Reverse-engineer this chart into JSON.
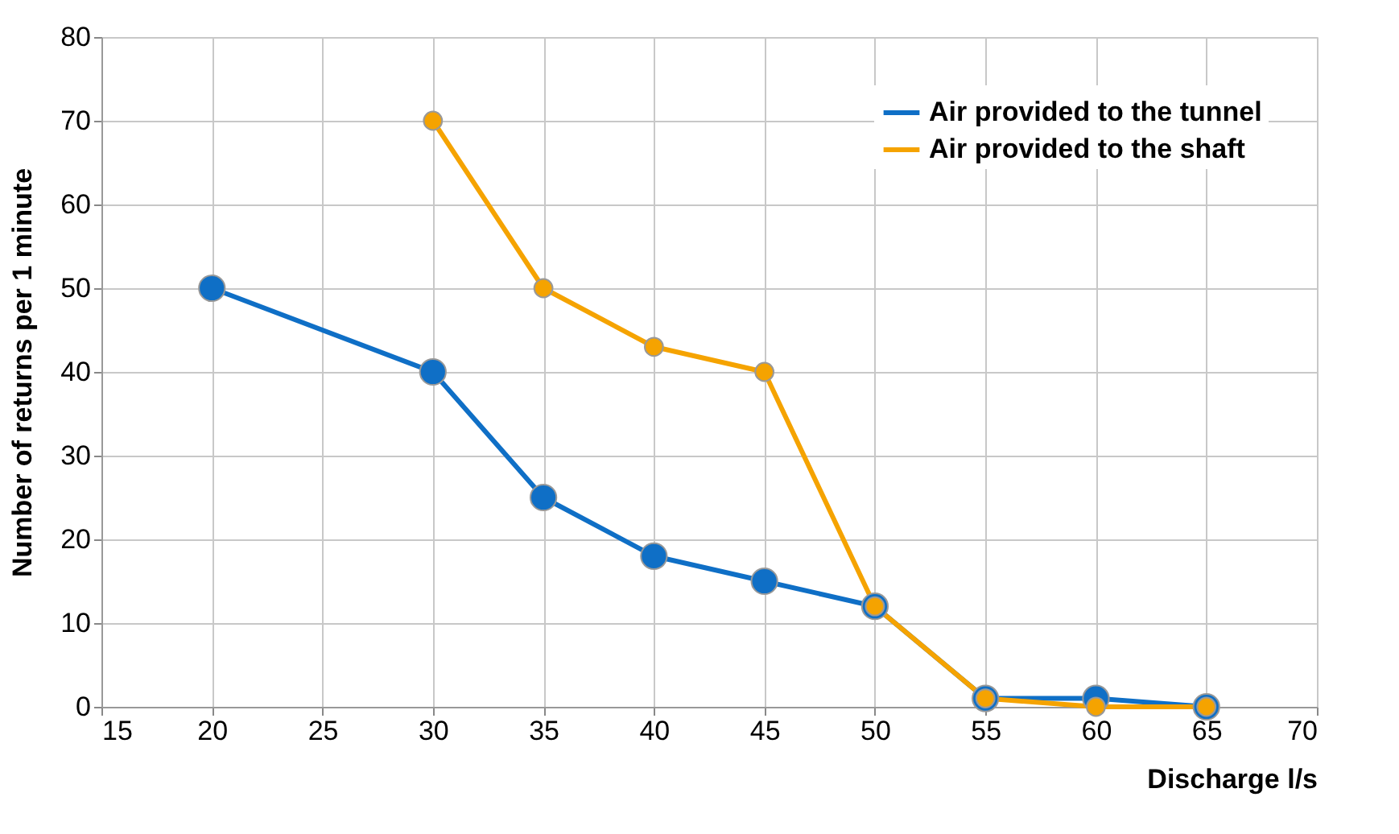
{
  "chart_data": {
    "type": "line",
    "xlabel": "Discharge l/s",
    "ylabel": "Number of returns per 1 minute",
    "xlim": [
      15,
      70
    ],
    "xticks": [
      15,
      20,
      25,
      30,
      35,
      40,
      45,
      50,
      55,
      60,
      65,
      70
    ],
    "ylim": [
      0,
      80
    ],
    "yticks": [
      0,
      10,
      20,
      30,
      40,
      50,
      60,
      70,
      80
    ],
    "grid": true,
    "legend": "top right",
    "marker": "circle",
    "line_style": "solid",
    "series": [
      {
        "name": "Air provided to the tunnel",
        "color": "#0f6fc6",
        "x": [
          20,
          30,
          35,
          40,
          45,
          50,
          55,
          60,
          65
        ],
        "values": [
          50,
          40,
          25,
          18,
          15,
          12,
          1,
          1,
          0
        ]
      },
      {
        "name": "Air provided to the shaft",
        "color": "#f5a300",
        "x": [
          30,
          35,
          40,
          45,
          50,
          55,
          60,
          65
        ],
        "values": [
          70,
          50,
          43,
          40,
          12,
          1,
          0,
          0
        ]
      }
    ]
  }
}
